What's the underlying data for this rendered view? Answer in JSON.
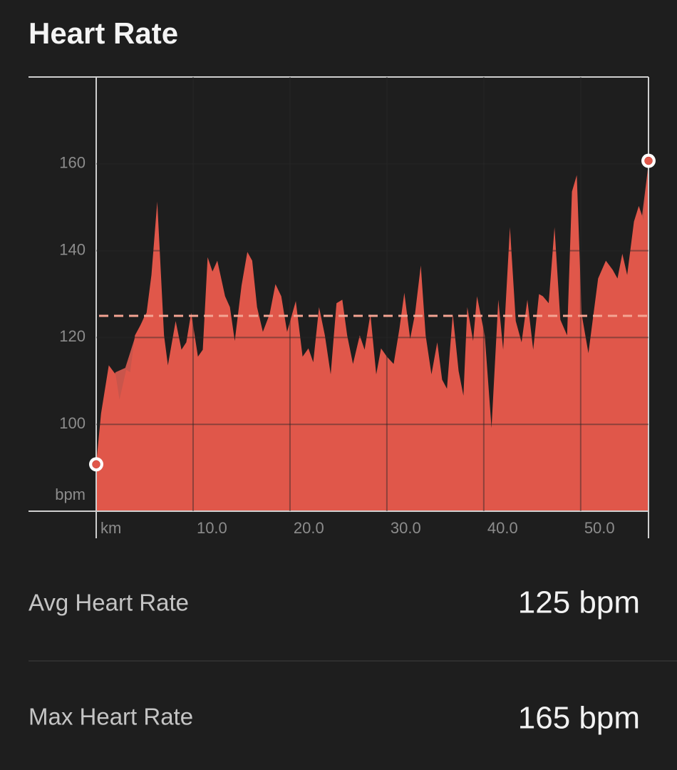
{
  "chart_data": {
    "type": "area",
    "title": "Heart Rate",
    "x_label": "km",
    "y_label": "bpm",
    "xlim": [
      0,
      57
    ],
    "ylim": [
      80,
      180
    ],
    "xticks": [
      {
        "value": 10,
        "label": "10.0"
      },
      {
        "value": 20,
        "label": "20.0"
      },
      {
        "value": 30,
        "label": "30.0"
      },
      {
        "value": 40,
        "label": "40.0"
      },
      {
        "value": 50,
        "label": "50.0"
      }
    ],
    "yticks": [
      100,
      120,
      140,
      160
    ],
    "grid": true,
    "avg": 125,
    "avg_color": "#f4a493",
    "series": [
      {
        "color": "#e0574a",
        "x": [
          0,
          0.5,
          1.3,
          2.0,
          2.4,
          3.1,
          3.5,
          4.0,
          4.8,
          5.2,
          5.7,
          6.3,
          7.0,
          7.4,
          8.2,
          8.8,
          9.3,
          9.8,
          10.5,
          11.0,
          11.5,
          12.0,
          12.5,
          13.3,
          13.8,
          14.3,
          15.0,
          15.6,
          16.1,
          16.6,
          17.2,
          17.9,
          18.5,
          19.1,
          19.7,
          20.6,
          21.3,
          21.9,
          22.4,
          23.0,
          23.6,
          24.2,
          24.8,
          25.4,
          25.9,
          26.5,
          27.2,
          27.7,
          28.3,
          28.9,
          29.4,
          30.0,
          30.7,
          31.3,
          31.8,
          32.4,
          32.9,
          33.5,
          34.0,
          34.6,
          35.2,
          35.7,
          36.2,
          36.8,
          37.4,
          37.9,
          38.3,
          38.9,
          39.3,
          40.1,
          40.8,
          41.5,
          42.0,
          42.7,
          43.3,
          43.9,
          44.5,
          45.1,
          45.7,
          46.1,
          46.7,
          47.3,
          47.9,
          48.6,
          49.1,
          49.6,
          50.1,
          50.8,
          51.8,
          52.6,
          53.3,
          53.8,
          54.3,
          54.8,
          55.5,
          56.0,
          56.5,
          57.0
        ],
        "values": [
          90.8,
          102.5,
          113.6,
          111.5,
          105.7,
          112.6,
          112,
          120.5,
          123.8,
          125.7,
          134.4,
          151.3,
          120.5,
          113.6,
          123.8,
          117.2,
          118.9,
          125.7,
          115.6,
          117.2,
          138.5,
          135.2,
          137.7,
          129.5,
          127,
          119.2,
          132,
          139.7,
          137.7,
          127,
          121.3,
          125.4,
          132.3,
          129.5,
          121.3,
          128.4,
          115.6,
          117.5,
          114.3,
          127,
          120.5,
          111.5,
          127.9,
          128.7,
          120.5,
          113.9,
          120.5,
          117.2,
          125.4,
          111.5,
          117.5,
          115.6,
          113.9,
          122.1,
          130.3,
          119.7,
          125.4,
          136.6,
          120.5,
          111.5,
          118.9,
          110.3,
          108.2,
          125.4,
          112.3,
          106.6,
          127,
          119.2,
          129.5,
          120.5,
          99.2,
          128.7,
          117.2,
          145.4,
          123.8,
          118.9,
          128.7,
          117.2,
          130,
          129.5,
          127.9,
          145.4,
          124.1,
          120.5,
          153.6,
          157.4,
          125.4,
          116.4,
          133.6,
          137.7,
          135.6,
          133.6,
          139.3,
          134.4,
          146.7,
          150.3,
          147,
          160.7
        ]
      },
      {
        "color": "#c9554b",
        "x": [
          0,
          1,
          2,
          3,
          4,
          5,
          6,
          6.8,
          7.2,
          8,
          9,
          10,
          10.8,
          11.5,
          12,
          13,
          14,
          15,
          16,
          16.8,
          17.5,
          18.5,
          19.5,
          20.5,
          21.5,
          22.5,
          24,
          25,
          26,
          27,
          28,
          29,
          31,
          32,
          34,
          35,
          36,
          37,
          38,
          39,
          40,
          41,
          42,
          42.6,
          43.2,
          44,
          45,
          46,
          46.8,
          47.5,
          48.5,
          49,
          49.5,
          50,
          50.8,
          51.5,
          52,
          53,
          54,
          55,
          56,
          57
        ],
        "values": [
          91,
          108,
          112,
          113,
          120,
          125,
          128,
          120,
          88,
          87,
          85,
          86,
          90,
          86,
          82,
          81,
          80,
          84,
          90,
          88,
          81,
          82,
          82,
          92,
          90,
          89,
          89,
          90,
          94,
          96,
          98,
          100,
          104,
          102,
          103,
          102,
          103,
          98,
          97,
          97,
          95,
          93,
          93,
          100,
          93,
          91,
          90,
          89,
          93,
          87,
          88,
          100,
          118,
          120,
          115,
          115,
          120,
          123,
          128,
          133,
          142,
          160
        ]
      }
    ]
  },
  "stats": [
    {
      "label": "Avg Heart Rate",
      "value_label": "125 bpm"
    },
    {
      "label": "Max Heart Rate",
      "value_label": "165 bpm"
    }
  ]
}
